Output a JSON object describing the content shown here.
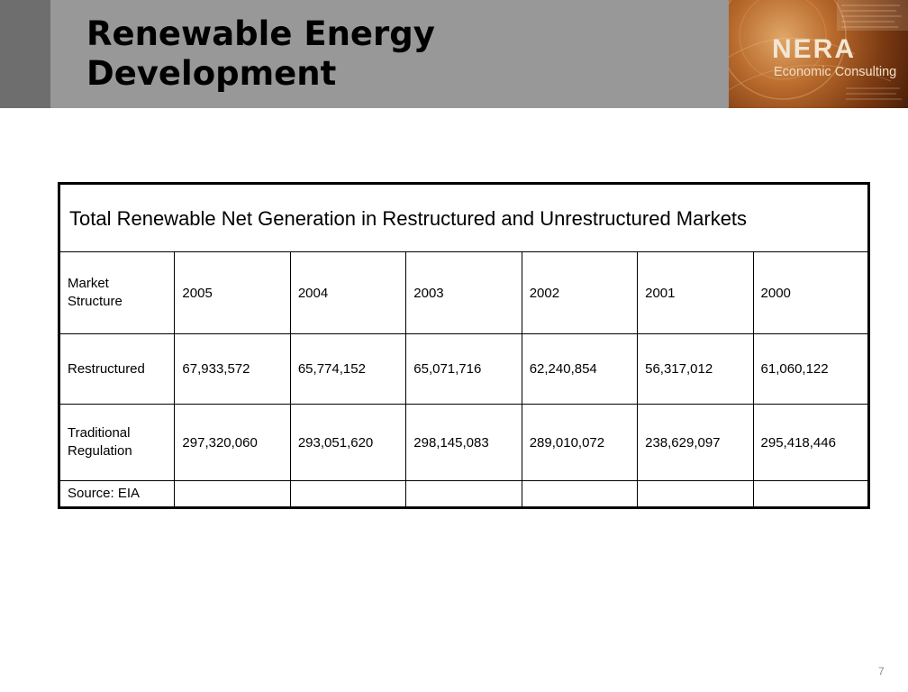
{
  "slide": {
    "title": "Renewable Energy\nDevelopment",
    "page_number": "7"
  },
  "logo": {
    "name": "NERA",
    "subtitle": "Economic Consulting"
  },
  "table": {
    "caption": "Total Renewable Net Generation in Restructured and Unrestructured Markets",
    "header": {
      "label": "Market Structure",
      "years": [
        "2005",
        "2004",
        "2003",
        "2002",
        "2001",
        "2000"
      ]
    },
    "rows": [
      {
        "label": "Restructured",
        "values": [
          "67,933,572",
          "65,774,152",
          "65,071,716",
          "62,240,854",
          "56,317,012",
          "61,060,122"
        ]
      },
      {
        "label": "Traditional Regulation",
        "values": [
          "297,320,060",
          "293,051,620",
          "298,145,083",
          "289,010,072",
          "238,629,097",
          "295,418,446"
        ]
      }
    ],
    "source": "Source:  EIA"
  }
}
